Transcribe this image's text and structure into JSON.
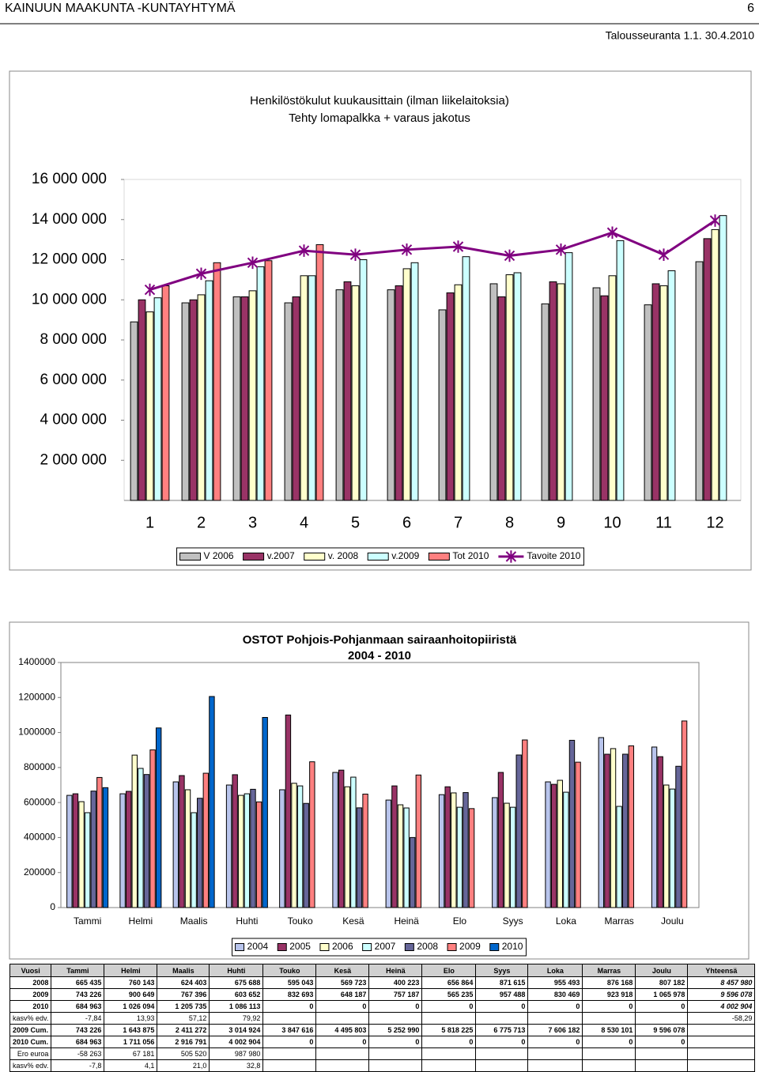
{
  "header": {
    "org": "KAINUUN MAAKUNTA -KUNTAYHTYMÄ",
    "page": "6",
    "period": "Talousseuranta 1.1. 30.4.2010"
  },
  "chart_data": [
    {
      "type": "bar",
      "title": "Henkilöstökulut kuukausittain (ilman liikelaitoksia)",
      "subtitle": "Tehty lomapalkka + varaus jakotus",
      "categories": [
        "1",
        "2",
        "3",
        "4",
        "5",
        "6",
        "7",
        "8",
        "9",
        "10",
        "11",
        "12"
      ],
      "ylim": [
        0,
        16000000
      ],
      "yticks": [
        {
          "value": 2000000,
          "label": "2 000 000"
        },
        {
          "value": 4000000,
          "label": "4 000 000"
        },
        {
          "value": 6000000,
          "label": "6 000 000"
        },
        {
          "value": 8000000,
          "label": "8 000 000"
        },
        {
          "value": 10000000,
          "label": "10 000 000"
        },
        {
          "value": 12000000,
          "label": "12 000 000"
        },
        {
          "value": 14000000,
          "label": "14 000 000"
        },
        {
          "value": 16000000,
          "label": "16 000 000"
        }
      ],
      "grid": false,
      "legend": "bottom",
      "series": [
        {
          "name": "V 2006",
          "color": "#c0c0c0",
          "values": [
            8900000,
            9850000,
            10150000,
            9850000,
            10500000,
            10500000,
            9500000,
            10800000,
            9800000,
            10600000,
            9750000,
            11900000
          ]
        },
        {
          "name": "v.2007",
          "color": "#993366",
          "values": [
            10000000,
            10000000,
            10150000,
            10150000,
            10900000,
            10700000,
            10350000,
            10150000,
            10900000,
            10200000,
            10800000,
            13050000
          ]
        },
        {
          "name": "v. 2008",
          "color": "#ffffcc",
          "values": [
            9400000,
            10250000,
            10450000,
            11200000,
            10700000,
            11550000,
            10750000,
            11250000,
            10800000,
            11200000,
            10700000,
            13500000
          ]
        },
        {
          "name": "v.2009",
          "color": "#ccffff",
          "values": [
            10100000,
            10950000,
            11650000,
            11200000,
            12000000,
            11850000,
            12150000,
            11350000,
            12350000,
            12950000,
            11450000,
            14200000
          ]
        },
        {
          "name": "Tot 2010",
          "color": "#ff8080",
          "values": [
            10700000,
            11850000,
            11950000,
            12750000,
            null,
            null,
            null,
            null,
            null,
            null,
            null,
            null
          ]
        },
        {
          "name": "Tavoite 2010",
          "color": "#800080",
          "type": "line",
          "marker": "star",
          "values": [
            10500000,
            11300000,
            11850000,
            12450000,
            12250000,
            12500000,
            12650000,
            12200000,
            12500000,
            13350000,
            12250000,
            13950000
          ]
        }
      ]
    },
    {
      "type": "bar",
      "title": "OSTOT Pohjois-Pohjanmaan sairaanhoitopiiristä",
      "subtitle": "2004 - 2010",
      "categories": [
        "Tammi",
        "Helmi",
        "Maalis",
        "Huhti",
        "Touko",
        "Kesä",
        "Heinä",
        "Elo",
        "Syys",
        "Loka",
        "Marras",
        "Joulu"
      ],
      "ylim": [
        0,
        1400000
      ],
      "yticks": [
        0,
        200000,
        400000,
        600000,
        800000,
        1000000,
        1200000,
        1400000
      ],
      "grid": false,
      "legend": "bottom",
      "series": [
        {
          "name": "2004",
          "color": "#b8c4ec",
          "values": [
            641000,
            650000,
            718000,
            700000,
            673000,
            772000,
            614000,
            645000,
            628000,
            718000,
            971000,
            917000
          ]
        },
        {
          "name": "2005",
          "color": "#993366",
          "values": [
            650000,
            664000,
            754000,
            759000,
            1100000,
            785000,
            695000,
            690000,
            772000,
            704000,
            876000,
            862000
          ]
        },
        {
          "name": "2006",
          "color": "#ffffcc",
          "values": [
            605000,
            871000,
            673000,
            641000,
            710000,
            690000,
            587000,
            655000,
            596000,
            727000,
            908000,
            700000
          ]
        },
        {
          "name": "2007",
          "color": "#ccffff",
          "values": [
            542000,
            795000,
            542000,
            650000,
            695000,
            745000,
            569000,
            573000,
            573000,
            659000,
            578000,
            677000
          ]
        },
        {
          "name": "2008",
          "color": "#666699",
          "values": [
            665435,
            760143,
            624403,
            675688,
            595043,
            569723,
            400223,
            656864,
            871615,
            955493,
            876168,
            807182
          ]
        },
        {
          "name": "2009",
          "color": "#ff8080",
          "values": [
            743226,
            900649,
            767396,
            603652,
            832693,
            648187,
            757187,
            565235,
            957488,
            830469,
            923918,
            1065978
          ]
        },
        {
          "name": "2010",
          "color": "#0066cc",
          "values": [
            684963,
            1026094,
            1205735,
            1086113,
            0,
            0,
            0,
            0,
            0,
            0,
            0,
            0
          ]
        }
      ]
    }
  ],
  "table": {
    "columns": [
      "Vuosi",
      "Tammi",
      "Helmi",
      "Maalis",
      "Huhti",
      "Touko",
      "Kesä",
      "Heinä",
      "Elo",
      "Syys",
      "Loka",
      "Marras",
      "Joulu",
      "Yhteensä"
    ],
    "rows": [
      {
        "label": "2008",
        "cells": [
          "665 435",
          "760 143",
          "624 403",
          "675 688",
          "595 043",
          "569 723",
          "400 223",
          "656 864",
          "871 615",
          "955 493",
          "876 168",
          "807 182"
        ],
        "total": "8 457 980"
      },
      {
        "label": "2009",
        "cells": [
          "743 226",
          "900 649",
          "767 396",
          "603 652",
          "832 693",
          "648 187",
          "757 187",
          "565 235",
          "957 488",
          "830 469",
          "923 918",
          "1 065 978"
        ],
        "total": "9 596 078"
      },
      {
        "label": "2010",
        "cells": [
          "684 963",
          "1 026 094",
          "1 205 735",
          "1 086 113",
          "0",
          "0",
          "0",
          "0",
          "0",
          "0",
          "0",
          "0"
        ],
        "total": "4 002 904"
      },
      {
        "label": "kasv% edv.",
        "cells": [
          "-7,84",
          "13,93",
          "57,12",
          "79,92"
        ],
        "total": "-58,29"
      },
      {
        "label": "2009 Cum.",
        "cells": [
          "743 226",
          "1 643 875",
          "2 411 272",
          "3 014 924",
          "3 847 616",
          "4 495 803",
          "5 252 990",
          "5 818 225",
          "6 775 713",
          "7 606 182",
          "8 530 101",
          "9 596 078"
        ]
      },
      {
        "label": "2010 Cum.",
        "cells": [
          "684 963",
          "1 711 056",
          "2 916 791",
          "4 002 904",
          "0",
          "0",
          "0",
          "0",
          "0",
          "0",
          "0",
          "0"
        ]
      },
      {
        "label": "Ero euroa",
        "cells": [
          "-58 263",
          "67 181",
          "505 520",
          "987 980"
        ]
      },
      {
        "label": "kasv% edv.",
        "cells": [
          "-7,8",
          "4,1",
          "21,0",
          "32,8"
        ]
      }
    ]
  }
}
